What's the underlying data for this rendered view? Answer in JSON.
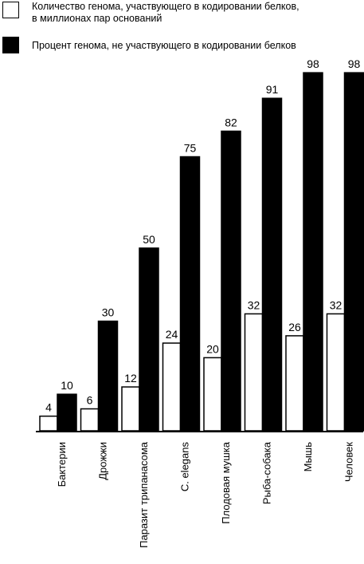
{
  "chart_data": {
    "type": "bar",
    "categories": [
      "Бактерии",
      "Дрожжи",
      "Паразит трипанасома",
      "C. elegans",
      "Плодовая мушка",
      "Рыба-собака",
      "Мышь",
      "Человек"
    ],
    "series": [
      {
        "name": "Количество генома, участвующего в кодировании белков,\nв миллионах пар оснований",
        "color": "#ffffff",
        "values": [
          4,
          6,
          12,
          24,
          20,
          32,
          26,
          32
        ]
      },
      {
        "name": "Процент генома, не участвующего в кодировании белков",
        "color": "#000000",
        "values": [
          10,
          30,
          50,
          75,
          82,
          91,
          98,
          98
        ]
      }
    ]
  }
}
